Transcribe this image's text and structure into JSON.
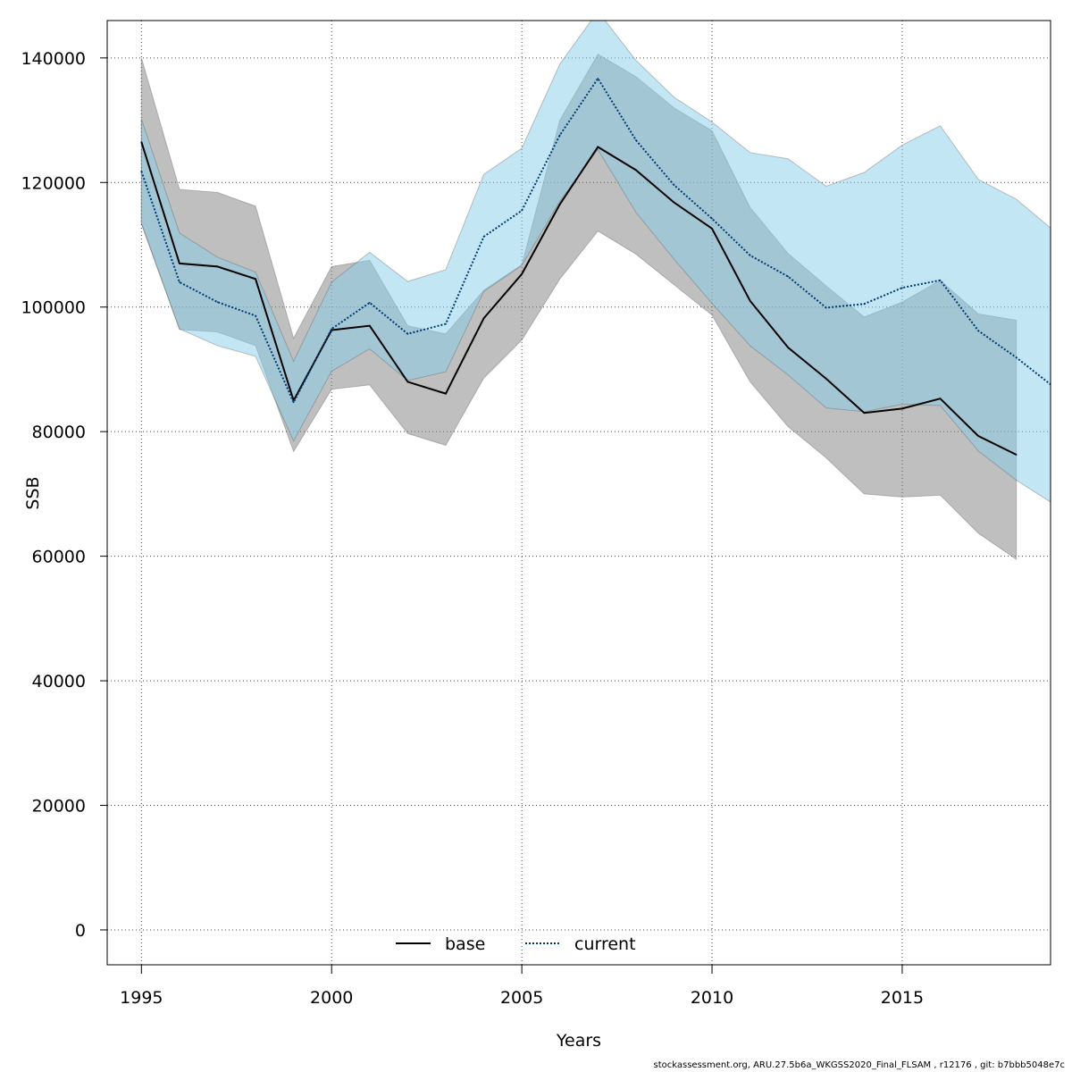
{
  "chart_data": {
    "type": "line",
    "xlabel": "Years",
    "ylabel": "SSB",
    "xlim": [
      1994.1,
      2018.9
    ],
    "ylim": [
      -5600,
      146000
    ],
    "x_ticks": [
      1995,
      2000,
      2005,
      2010,
      2015
    ],
    "y_ticks": [
      0,
      20000,
      40000,
      60000,
      80000,
      100000,
      120000,
      140000
    ],
    "grid": true,
    "legend_position": "bottom-center",
    "series": [
      {
        "name": "base",
        "line_style": "solid",
        "line_color": "#000000",
        "band_color": "#808080",
        "x": [
          1995,
          1996,
          1997,
          1998,
          1999,
          2000,
          2001,
          2002,
          2003,
          2004,
          2005,
          2006,
          2007,
          2008,
          2009,
          2010,
          2011,
          2012,
          2013,
          2014,
          2015,
          2016,
          2017,
          2018
        ],
        "values": [
          126500,
          107000,
          106500,
          104500,
          85000,
          96300,
          97000,
          88000,
          86100,
          98200,
          105300,
          116500,
          125700,
          122000,
          116800,
          112600,
          101000,
          93500,
          88500,
          83000,
          83700,
          85300,
          79300,
          76300
        ],
        "upper": [
          140000,
          118900,
          118400,
          116200,
          95000,
          106500,
          107500,
          97000,
          95700,
          102700,
          106800,
          130000,
          140600,
          137000,
          132000,
          128300,
          116000,
          108600,
          103400,
          98400,
          100800,
          104300,
          98900,
          97900
        ],
        "lower": [
          113300,
          96400,
          96000,
          93800,
          76800,
          86800,
          87500,
          79700,
          77800,
          88600,
          94700,
          104500,
          112200,
          108500,
          103600,
          98700,
          88000,
          80800,
          75800,
          70000,
          69500,
          69800,
          63700,
          59500
        ]
      },
      {
        "name": "current",
        "line_style": "dotted",
        "line_color": "#003a70",
        "band_color": "#87ceeb",
        "x": [
          1995,
          1996,
          1997,
          1998,
          1999,
          2000,
          2001,
          2002,
          2003,
          2004,
          2005,
          2006,
          2007,
          2008,
          2009,
          2010,
          2011,
          2012,
          2013,
          2014,
          2015,
          2016,
          2017,
          2018,
          2019
        ],
        "values": [
          121800,
          104000,
          100800,
          98600,
          84700,
          96500,
          100700,
          95700,
          97300,
          111300,
          115500,
          127600,
          136700,
          126800,
          119600,
          114200,
          108300,
          104900,
          99900,
          100500,
          103100,
          104300,
          96200,
          91900,
          87100
        ],
        "upper": [
          130200,
          111900,
          108000,
          105600,
          91300,
          104000,
          108800,
          104100,
          106000,
          121300,
          125500,
          139000,
          147500,
          139600,
          133700,
          129700,
          124800,
          123800,
          119400,
          121600,
          126000,
          129100,
          120500,
          117300,
          112200
        ],
        "lower": [
          113500,
          96500,
          93800,
          92100,
          78500,
          89700,
          93300,
          88200,
          89600,
          102500,
          106700,
          117000,
          125300,
          115200,
          107700,
          100600,
          93800,
          89100,
          83800,
          83200,
          84400,
          84200,
          76900,
          72200,
          68300
        ]
      }
    ]
  },
  "footer_text": "stockassessment.org, ARU.27.5b6a_WKGSS2020_Final_FLSAM , r12176 , git: b7bbb5048e7c"
}
